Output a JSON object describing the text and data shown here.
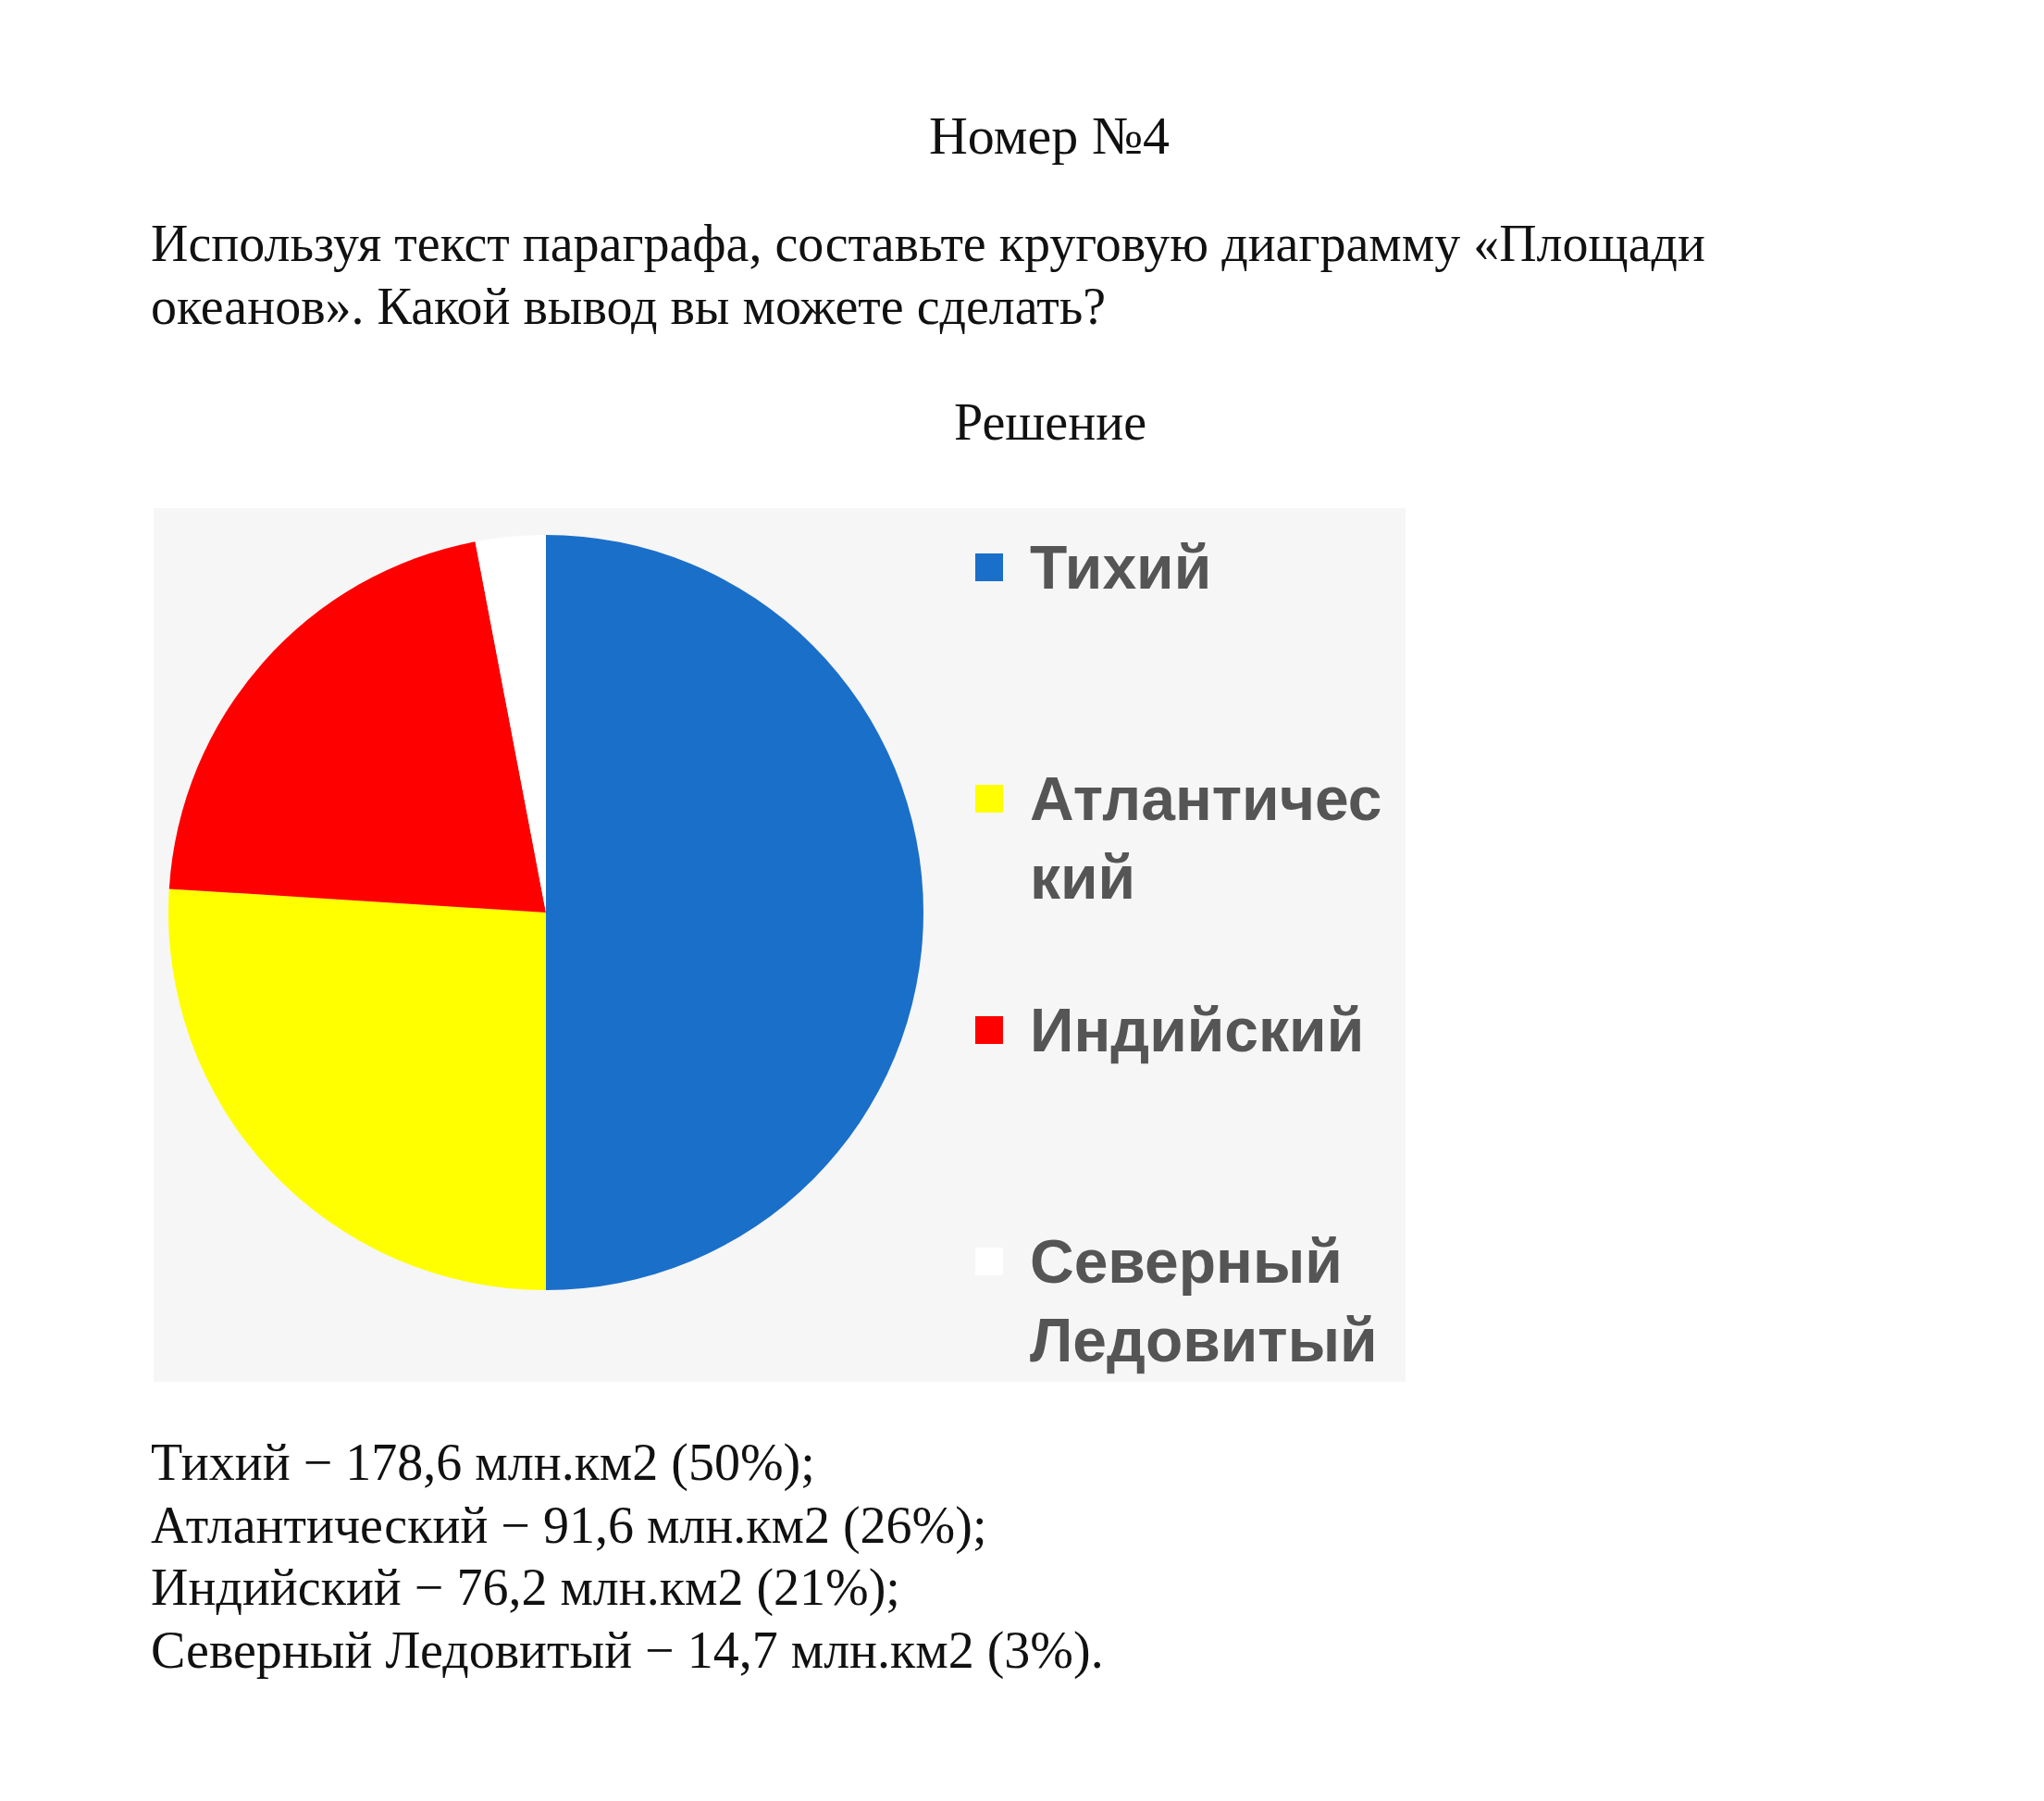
{
  "chart_data": {
    "type": "pie",
    "title": "Номер №4",
    "subtitle": "Используя текст параграфа, составьте круговую диаграмму «Площади океанов». Какой вывод вы можете сделать?",
    "categories": [
      "Тихий",
      "Атлантический",
      "Индийский",
      "Северный Ледовитый"
    ],
    "values": [
      50,
      26,
      21,
      3
    ],
    "colors": [
      "#1a6fc9",
      "#ffff00",
      "#ff0000",
      "#ffffff"
    ],
    "legend": "right",
    "annotations": [
      "Решение",
      "Тихий − 178,6 млн.км2 (50%);",
      "Атлантический − 91,6 млн.км2 (26%);",
      "Индийский − 76,2 млн.км2 (21%);",
      "Северный Ледовитый − 14,7 млн.км2 (3%)."
    ]
  }
}
